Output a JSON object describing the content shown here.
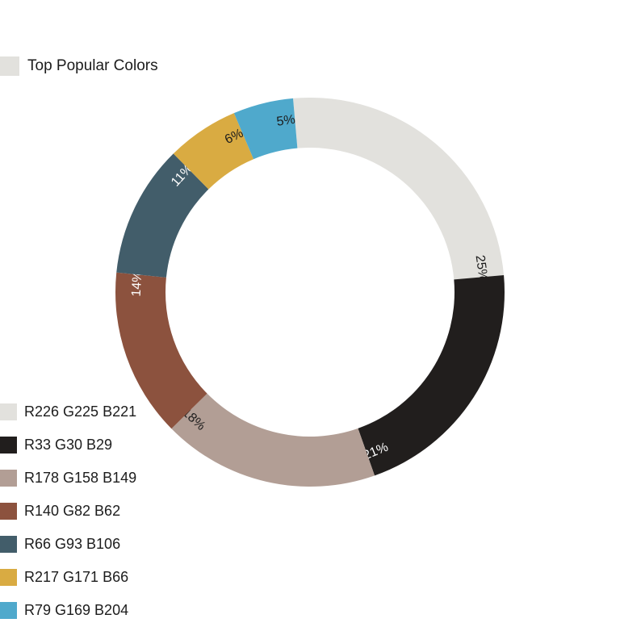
{
  "chart_data": {
    "type": "pie",
    "title": "Top Popular Colors",
    "donut": true,
    "categories": [
      "R226 G225 B221",
      "R33 G30 B29",
      "R178 G158 B149",
      "R140 G82 B62",
      "R66 G93 B106",
      "R217 G171 B66",
      "R79 G169 B204"
    ],
    "values": [
      25,
      21,
      18,
      14,
      11,
      6,
      5
    ],
    "value_labels": [
      "25%",
      "21%",
      "18%",
      "14%",
      "11%",
      "6%",
      "5%"
    ],
    "colors": [
      "#e2e1dd",
      "#211e1d",
      "#b29e95",
      "#8c523e",
      "#425d6a",
      "#d9ab42",
      "#4fa9cc"
    ],
    "label_colors": [
      "#1c1c1c",
      "#ffffff",
      "#1c1c1c",
      "#ffffff",
      "#ffffff",
      "#1c1c1c",
      "#1c1c1c"
    ],
    "legend_position": "bottom-left"
  }
}
